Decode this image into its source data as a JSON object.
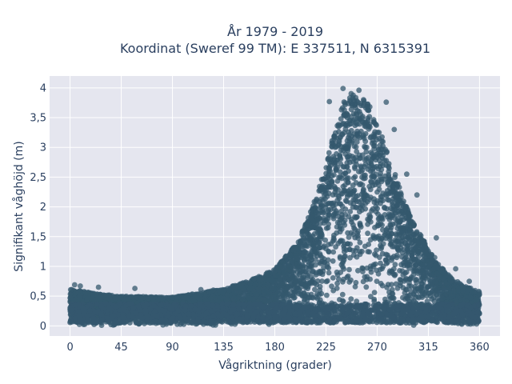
{
  "chart_data": {
    "type": "scatter",
    "title_line1": "År 1979 - 2019",
    "title_line2": "Koordinat (Sweref 99 TM): E 337511, N 6315391",
    "xlabel": "Vågriktning (grader)",
    "ylabel": "Signifikant våghöjd (m)",
    "xlim": [
      -18,
      378
    ],
    "ylim": [
      -0.17,
      4.2
    ],
    "x_ticks": [
      0,
      45,
      90,
      135,
      180,
      225,
      270,
      315,
      360
    ],
    "x_tick_labels": [
      "0",
      "45",
      "90",
      "135",
      "180",
      "225",
      "270",
      "315",
      "360"
    ],
    "y_ticks": [
      0,
      0.5,
      1,
      1.5,
      2,
      2.5,
      3,
      3.5,
      4
    ],
    "y_tick_labels": [
      "0",
      "0,5",
      "1",
      "1,5",
      "2",
      "2,5",
      "3",
      "3,5",
      "4"
    ],
    "grid": true,
    "marker_color": "#34586e",
    "plot_bg": "#e5e6ef",
    "envelope": {
      "direction": [
        0,
        20,
        45,
        90,
        135,
        160,
        180,
        200,
        215,
        225,
        235,
        245,
        255,
        262,
        270,
        280,
        290,
        300,
        315,
        330,
        345,
        360
      ],
      "max_height": [
        0.62,
        0.55,
        0.5,
        0.48,
        0.62,
        0.78,
        0.95,
        1.4,
        2.1,
        2.7,
        3.5,
        3.95,
        3.85,
        3.75,
        3.4,
        2.9,
        2.3,
        1.8,
        1.3,
        0.9,
        0.68,
        0.58
      ]
    },
    "outliers": [
      {
        "x": 240,
        "y": 3.99
      },
      {
        "x": 254,
        "y": 3.96
      },
      {
        "x": 258,
        "y": 3.8
      },
      {
        "x": 278,
        "y": 3.76
      },
      {
        "x": 228,
        "y": 3.77
      },
      {
        "x": 285,
        "y": 3.3
      },
      {
        "x": 296,
        "y": 2.55
      },
      {
        "x": 305,
        "y": 2.2
      },
      {
        "x": 322,
        "y": 1.48
      },
      {
        "x": 339,
        "y": 0.96
      },
      {
        "x": 351,
        "y": 0.75
      },
      {
        "x": 4,
        "y": 0.69
      },
      {
        "x": 9,
        "y": 0.67
      },
      {
        "x": 25,
        "y": 0.65
      },
      {
        "x": 57,
        "y": 0.63
      },
      {
        "x": 115,
        "y": 0.61
      },
      {
        "x": 126,
        "y": 0.6
      }
    ]
  }
}
